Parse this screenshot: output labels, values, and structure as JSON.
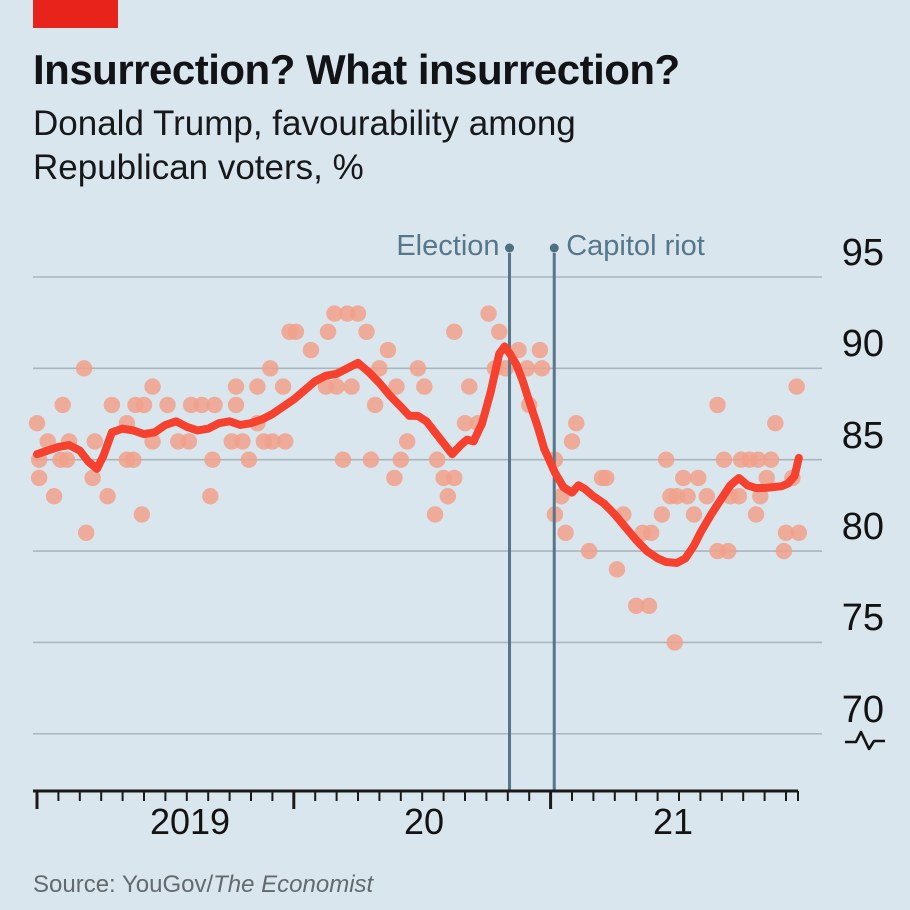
{
  "header": {
    "title": "Insurrection? What insurrection?",
    "subtitle": "Donald Trump, favourability among Republican voters, %"
  },
  "source": {
    "prefix": "Source: YouGov/",
    "publication": "The Economist"
  },
  "colors": {
    "background": "#d9e6ee",
    "brand_red_tab": "#e8231c",
    "trend_line": "#f5412d",
    "scatter_dot": "#f1a089",
    "annotation_slate": "#56768a",
    "gridline": "#a9b6be",
    "axis": "#1a1a1a",
    "text_dark": "#131313",
    "source_grey": "#63696d"
  },
  "chart_data": {
    "type": "scatter",
    "title": "Donald Trump, favourability among Republican voters, %",
    "x_unit": "months since Jan 2019 (0 = Jan 2019, 12 = Jan 2020, 24 = Jan 2021)",
    "x_axis": {
      "labels": [
        "2019",
        "20",
        "21"
      ],
      "year_tick_months": [
        0,
        12,
        24
      ],
      "minor_tick_every_month": true,
      "last_month": 35.6
    },
    "y_axis": {
      "tick_labels": [
        "95",
        "90",
        "85",
        "80",
        "75",
        "70"
      ],
      "tick_values": [
        95,
        90,
        85,
        80,
        75,
        70
      ],
      "ylim": [
        68.5,
        96.5
      ],
      "axis_break_symbol": true
    },
    "events": [
      {
        "label": "Election",
        "month": 22.08,
        "align": "left-of-line"
      },
      {
        "label": "Capitol riot",
        "month": 24.17,
        "align": "right-of-line"
      }
    ],
    "series": [
      {
        "name": "weekly poll results",
        "type": "scatter",
        "points": [
          [
            0,
            87
          ],
          [
            0.1,
            85
          ],
          [
            0.1,
            84
          ],
          [
            0.5,
            86
          ],
          [
            0.8,
            83
          ],
          [
            1.1,
            85
          ],
          [
            1.2,
            88
          ],
          [
            1.4,
            85
          ],
          [
            1.5,
            86
          ],
          [
            2.2,
            90
          ],
          [
            2.3,
            81
          ],
          [
            2.6,
            84
          ],
          [
            2.7,
            86
          ],
          [
            3.3,
            83
          ],
          [
            3.5,
            88
          ],
          [
            4.2,
            87
          ],
          [
            4.2,
            85
          ],
          [
            4.5,
            85
          ],
          [
            4.6,
            88
          ],
          [
            4.9,
            82
          ],
          [
            5,
            88
          ],
          [
            5.4,
            89
          ],
          [
            5.4,
            86
          ],
          [
            6.1,
            88
          ],
          [
            6.6,
            86
          ],
          [
            7.1,
            86
          ],
          [
            7.2,
            88
          ],
          [
            7.7,
            88
          ],
          [
            8.1,
            83
          ],
          [
            8.2,
            85
          ],
          [
            8.3,
            88
          ],
          [
            9.1,
            86
          ],
          [
            9.3,
            89
          ],
          [
            9.3,
            88
          ],
          [
            9.6,
            86
          ],
          [
            9.9,
            85
          ],
          [
            10.3,
            89
          ],
          [
            10.3,
            87
          ],
          [
            10.6,
            86
          ],
          [
            10.9,
            90
          ],
          [
            11,
            86
          ],
          [
            11.5,
            89
          ],
          [
            11.6,
            86
          ],
          [
            11.8,
            92
          ],
          [
            12.1,
            92
          ],
          [
            12.8,
            91
          ],
          [
            13.5,
            89
          ],
          [
            13.6,
            92
          ],
          [
            13.9,
            93
          ],
          [
            14,
            89
          ],
          [
            14.3,
            85
          ],
          [
            14.5,
            93
          ],
          [
            14.7,
            89
          ],
          [
            15,
            93
          ],
          [
            15.4,
            92
          ],
          [
            15.6,
            85
          ],
          [
            15.8,
            88
          ],
          [
            16,
            90
          ],
          [
            16.4,
            91
          ],
          [
            16.7,
            84
          ],
          [
            16.8,
            89
          ],
          [
            17,
            85
          ],
          [
            17.3,
            86
          ],
          [
            17.8,
            90
          ],
          [
            18.1,
            89
          ],
          [
            18.6,
            82
          ],
          [
            18.7,
            85
          ],
          [
            19,
            84
          ],
          [
            19.2,
            83
          ],
          [
            19.5,
            92
          ],
          [
            19.5,
            84
          ],
          [
            20,
            87
          ],
          [
            20.2,
            89
          ],
          [
            20.6,
            87
          ],
          [
            21.1,
            93
          ],
          [
            21.4,
            90
          ],
          [
            21.6,
            92
          ],
          [
            21.9,
            90
          ],
          [
            22.5,
            91
          ],
          [
            22.9,
            90
          ],
          [
            23,
            88
          ],
          [
            23.5,
            91
          ],
          [
            23.6,
            90
          ],
          [
            24.2,
            85
          ],
          [
            24.2,
            82
          ],
          [
            24.5,
            83
          ],
          [
            24.7,
            81
          ],
          [
            25,
            86
          ],
          [
            25.2,
            87
          ],
          [
            25.8,
            80
          ],
          [
            26.4,
            84
          ],
          [
            26.6,
            84
          ],
          [
            27.1,
            79
          ],
          [
            27.4,
            82
          ],
          [
            28,
            77
          ],
          [
            28.3,
            81
          ],
          [
            28.6,
            77
          ],
          [
            28.7,
            81
          ],
          [
            29.2,
            82
          ],
          [
            29.4,
            85
          ],
          [
            29.6,
            83
          ],
          [
            29.8,
            75
          ],
          [
            29.9,
            83
          ],
          [
            30.2,
            84
          ],
          [
            30.4,
            83
          ],
          [
            30.7,
            82
          ],
          [
            30.9,
            84
          ],
          [
            31.3,
            83
          ],
          [
            31.8,
            88
          ],
          [
            31.8,
            80
          ],
          [
            32.1,
            85
          ],
          [
            32.3,
            80
          ],
          [
            32.4,
            83
          ],
          [
            32.8,
            83
          ],
          [
            32.9,
            85
          ],
          [
            33.3,
            85
          ],
          [
            33.6,
            82
          ],
          [
            33.7,
            85
          ],
          [
            33.8,
            83
          ],
          [
            34.1,
            84
          ],
          [
            34.3,
            85
          ],
          [
            34.5,
            87
          ],
          [
            34.9,
            80
          ],
          [
            35,
            81
          ],
          [
            35.3,
            84
          ],
          [
            35.5,
            89
          ],
          [
            35.6,
            81
          ]
        ]
      },
      {
        "name": "trend line",
        "type": "line",
        "points": [
          [
            0,
            85.3
          ],
          [
            0.5,
            85.5
          ],
          [
            1,
            85.7
          ],
          [
            1.5,
            85.8
          ],
          [
            2,
            85.5
          ],
          [
            2.4,
            84.9
          ],
          [
            2.8,
            84.5
          ],
          [
            3.1,
            85.2
          ],
          [
            3.5,
            86.5
          ],
          [
            4,
            86.7
          ],
          [
            4.5,
            86.6
          ],
          [
            5,
            86.4
          ],
          [
            5.5,
            86.5
          ],
          [
            6,
            86.9
          ],
          [
            6.5,
            87.1
          ],
          [
            7,
            86.8
          ],
          [
            7.5,
            86.6
          ],
          [
            8,
            86.7
          ],
          [
            8.5,
            87
          ],
          [
            9,
            87.1
          ],
          [
            9.5,
            86.9
          ],
          [
            10,
            87
          ],
          [
            10.5,
            87.2
          ],
          [
            11,
            87.5
          ],
          [
            11.5,
            87.9
          ],
          [
            12,
            88.3
          ],
          [
            12.5,
            88.8
          ],
          [
            13,
            89.3
          ],
          [
            13.5,
            89.6
          ],
          [
            14,
            89.7
          ],
          [
            14.5,
            90
          ],
          [
            15,
            90.3
          ],
          [
            15.5,
            89.8
          ],
          [
            16,
            89.2
          ],
          [
            16.5,
            88.5
          ],
          [
            17,
            87.9
          ],
          [
            17.4,
            87.4
          ],
          [
            17.8,
            87.4
          ],
          [
            18.2,
            87.1
          ],
          [
            18.6,
            86.5
          ],
          [
            19,
            85.9
          ],
          [
            19.4,
            85.3
          ],
          [
            19.8,
            85.8
          ],
          [
            20.1,
            86.1
          ],
          [
            20.4,
            86
          ],
          [
            20.8,
            87
          ],
          [
            21.2,
            88.7
          ],
          [
            21.6,
            90.8
          ],
          [
            21.85,
            91.2
          ],
          [
            22.1,
            90.8
          ],
          [
            22.4,
            90.2
          ],
          [
            22.7,
            89.3
          ],
          [
            23,
            88.2
          ],
          [
            23.4,
            86.8
          ],
          [
            23.7,
            85.6
          ],
          [
            24.2,
            84.3
          ],
          [
            24.6,
            83.5
          ],
          [
            25,
            83.2
          ],
          [
            25.3,
            83.6
          ],
          [
            25.6,
            83.4
          ],
          [
            26,
            83
          ],
          [
            26.5,
            82.6
          ],
          [
            27,
            82
          ],
          [
            27.5,
            81.3
          ],
          [
            28,
            80.6
          ],
          [
            28.5,
            80
          ],
          [
            29,
            79.6
          ],
          [
            29.4,
            79.4
          ],
          [
            29.9,
            79.35
          ],
          [
            30.3,
            79.6
          ],
          [
            30.7,
            80.3
          ],
          [
            31,
            81
          ],
          [
            31.5,
            82
          ],
          [
            32,
            82.9
          ],
          [
            32.4,
            83.6
          ],
          [
            32.8,
            84
          ],
          [
            33.2,
            83.6
          ],
          [
            33.6,
            83.45
          ],
          [
            34,
            83.45
          ],
          [
            34.4,
            83.5
          ],
          [
            34.8,
            83.55
          ],
          [
            35.1,
            83.7
          ],
          [
            35.4,
            84.1
          ],
          [
            35.6,
            85.1
          ]
        ]
      }
    ]
  }
}
